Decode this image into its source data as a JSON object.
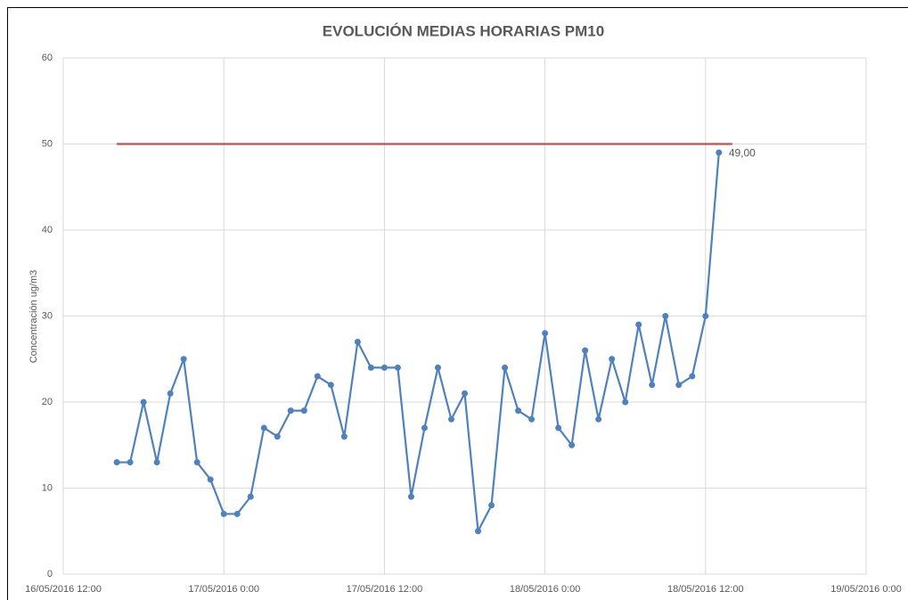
{
  "chart_data": {
    "type": "line",
    "title": "EVOLUCIÓN MEDIAS HORARIAS PM10",
    "y_label": "Concentración ug/m3",
    "xlim": [
      "16/05/2016 12:00",
      "19/05/2016 0:00"
    ],
    "xticks": [
      "16/05/2016 12:00",
      "17/05/2016 0:00",
      "17/05/2016 12:00",
      "18/05/2016 0:00",
      "18/05/2016 12:00",
      "19/05/2016 0:00"
    ],
    "ylim": [
      0,
      60
    ],
    "yticks": [
      0,
      10,
      20,
      30,
      40,
      50,
      60
    ],
    "grid": true,
    "series": [
      {
        "color": "#4f81bd",
        "x": [
          "16/05/2016 16:00",
          "16/05/2016 17:00",
          "16/05/2016 18:00",
          "16/05/2016 19:00",
          "16/05/2016 20:00",
          "16/05/2016 21:00",
          "16/05/2016 22:00",
          "16/05/2016 23:00",
          "17/05/2016 0:00",
          "17/05/2016 1:00",
          "17/05/2016 2:00",
          "17/05/2016 3:00",
          "17/05/2016 4:00",
          "17/05/2016 5:00",
          "17/05/2016 6:00",
          "17/05/2016 7:00",
          "17/05/2016 8:00",
          "17/05/2016 9:00",
          "17/05/2016 10:00",
          "17/05/2016 11:00",
          "17/05/2016 12:00",
          "17/05/2016 13:00",
          "17/05/2016 14:00",
          "17/05/2016 15:00",
          "17/05/2016 16:00",
          "17/05/2016 17:00",
          "17/05/2016 18:00",
          "17/05/2016 19:00",
          "17/05/2016 20:00",
          "17/05/2016 21:00",
          "17/05/2016 22:00",
          "17/05/2016 23:00",
          "18/05/2016 0:00",
          "18/05/2016 1:00",
          "18/05/2016 2:00",
          "18/05/2016 3:00",
          "18/05/2016 4:00",
          "18/05/2016 5:00",
          "18/05/2016 6:00",
          "18/05/2016 7:00",
          "18/05/2016 8:00",
          "18/05/2016 9:00",
          "18/05/2016 10:00",
          "18/05/2016 11:00",
          "18/05/2016 12:00",
          "18/05/2016 13:00"
        ],
        "values": [
          13,
          13,
          20,
          13,
          21,
          25,
          13,
          11,
          7,
          7,
          9,
          17,
          16,
          19,
          19,
          23,
          22,
          16,
          27,
          24,
          24,
          24,
          9,
          17,
          24,
          18,
          21,
          5,
          8,
          24,
          19,
          18,
          28,
          17,
          15,
          26,
          18,
          25,
          20,
          29,
          22,
          30,
          22,
          23,
          30,
          49
        ],
        "value_labels": [
          null,
          null,
          null,
          null,
          null,
          null,
          null,
          null,
          null,
          null,
          null,
          null,
          null,
          null,
          null,
          null,
          null,
          null,
          null,
          null,
          null,
          null,
          null,
          null,
          null,
          null,
          null,
          null,
          null,
          null,
          null,
          null,
          null,
          null,
          null,
          null,
          null,
          null,
          null,
          null,
          null,
          null,
          null,
          null,
          null,
          "49,00"
        ],
        "markers": true
      },
      {
        "color": "#c0504d",
        "x": [
          "16/05/2016 16:00",
          "18/05/2016 14:00"
        ],
        "values": [
          50,
          50
        ],
        "markers": false
      }
    ]
  }
}
